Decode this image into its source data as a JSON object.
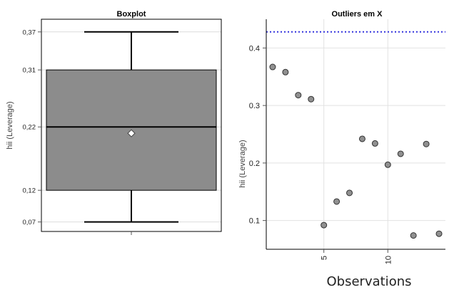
{
  "chart_data": [
    {
      "type": "box",
      "title": "Boxplot",
      "ylabel": "hii (Leverage)",
      "xlabel": "",
      "ylim": [
        0.055,
        0.39
      ],
      "yticks": [
        0.07,
        0.12,
        0.22,
        0.31,
        0.37
      ],
      "ytick_labels": [
        "0,07",
        "0,12",
        "0,22",
        "0,31",
        "0,37"
      ],
      "stats": {
        "min": 0.07,
        "q1": 0.12,
        "median": 0.22,
        "q3": 0.31,
        "max": 0.37,
        "mean": 0.21
      },
      "box_color": "#8c8c8c",
      "grid": true
    },
    {
      "type": "scatter",
      "title": "Outliers em X",
      "ylabel": "hii (Leverage)",
      "xlabel": "Observations",
      "xlim": [
        0.5,
        14.5
      ],
      "ylim": [
        0.05,
        0.45
      ],
      "xticks": [
        5,
        10
      ],
      "yticks": [
        0.1,
        0.2,
        0.3,
        0.4
      ],
      "ytick_labels": [
        "0.1",
        "0.2",
        "0.3",
        "0.4"
      ],
      "x": [
        1,
        2,
        3,
        4,
        5,
        6,
        7,
        8,
        9,
        10,
        11,
        12,
        13,
        14
      ],
      "y": [
        0.367,
        0.358,
        0.318,
        0.311,
        0.092,
        0.133,
        0.148,
        0.242,
        0.234,
        0.197,
        0.216,
        0.074,
        0.233,
        0.077
      ],
      "reference_line": 0.428,
      "reference_color": "#3333dd",
      "point_color": "#909090",
      "grid": true
    }
  ]
}
